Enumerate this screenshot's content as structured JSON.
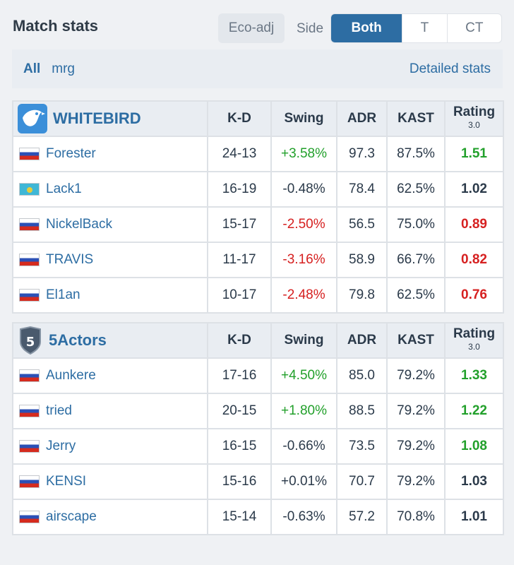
{
  "header": {
    "title": "Match stats",
    "eco_label": "Eco-adj",
    "side_label": "Side",
    "side_options": [
      "Both",
      "T",
      "CT"
    ],
    "side_selected": "Both"
  },
  "filter": {
    "all_label": "All",
    "map_label": "mrg",
    "detailed_label": "Detailed stats"
  },
  "columns": {
    "kd": "K-D",
    "swing": "Swing",
    "adr": "ADR",
    "kast": "KAST",
    "rating": "Rating",
    "rating_sub": "3.0"
  },
  "teams": [
    {
      "name": "WHITEBIRD",
      "logo_icon": "white-bird-icon",
      "players": [
        {
          "flag": "ru",
          "name": "Forester",
          "kd": "24-13",
          "swing": "+3.58%",
          "adr": "97.3",
          "kast": "87.5%",
          "rating": "1.51"
        },
        {
          "flag": "kz",
          "name": "Lack1",
          "kd": "16-19",
          "swing": "-0.48%",
          "adr": "78.4",
          "kast": "62.5%",
          "rating": "1.02"
        },
        {
          "flag": "ru",
          "name": "NickelBack",
          "kd": "15-17",
          "swing": "-2.50%",
          "adr": "56.5",
          "kast": "75.0%",
          "rating": "0.89"
        },
        {
          "flag": "ru",
          "name": "TRAVIS",
          "kd": "11-17",
          "swing": "-3.16%",
          "adr": "58.9",
          "kast": "66.7%",
          "rating": "0.82"
        },
        {
          "flag": "ru",
          "name": "El1an",
          "kd": "10-17",
          "swing": "-2.48%",
          "adr": "79.8",
          "kast": "62.5%",
          "rating": "0.76"
        }
      ]
    },
    {
      "name": "5Actors",
      "logo_icon": "shield-5-icon",
      "logo_text": "5",
      "players": [
        {
          "flag": "ru",
          "name": "Aunkere",
          "kd": "17-16",
          "swing": "+4.50%",
          "adr": "85.0",
          "kast": "79.2%",
          "rating": "1.33"
        },
        {
          "flag": "ru",
          "name": "tried",
          "kd": "20-15",
          "swing": "+1.80%",
          "adr": "88.5",
          "kast": "79.2%",
          "rating": "1.22"
        },
        {
          "flag": "ru",
          "name": "Jerry",
          "kd": "16-15",
          "swing": "-0.66%",
          "adr": "73.5",
          "kast": "79.2%",
          "rating": "1.08"
        },
        {
          "flag": "ru",
          "name": "KENSI",
          "kd": "15-16",
          "swing": "+0.01%",
          "adr": "70.7",
          "kast": "79.2%",
          "rating": "1.03"
        },
        {
          "flag": "ru",
          "name": "airscape",
          "kd": "15-14",
          "swing": "-0.63%",
          "adr": "57.2",
          "kast": "70.8%",
          "rating": "1.01"
        }
      ]
    }
  ],
  "colors": {
    "accent": "#2d6da3",
    "positive": "#22a02b",
    "negative": "#d62020"
  }
}
